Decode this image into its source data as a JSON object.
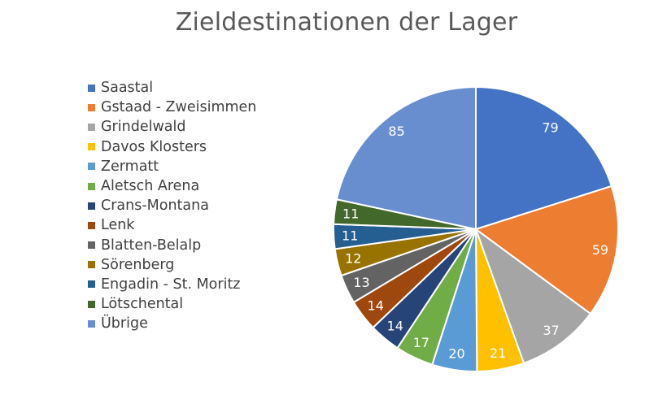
{
  "chart_data": {
    "type": "pie",
    "title": "Zieldestinationen der Lager",
    "legend_position": "left",
    "categories": [
      "Saastal",
      "Gstaad - Zweisimmen",
      "Grindelwald",
      "Davos Klosters",
      "Zermatt",
      "Aletsch Arena",
      "Crans-Montana",
      "Lenk",
      "Blatten-Belalp",
      "Sörenberg",
      "Engadin - St. Moritz",
      "Lötschental",
      "Übrige"
    ],
    "values": [
      79,
      59,
      37,
      21,
      20,
      17,
      14,
      14,
      13,
      12,
      11,
      11,
      85
    ],
    "colors": [
      "#4472C4",
      "#ED7D31",
      "#A5A5A5",
      "#FFC000",
      "#5B9BD5",
      "#70AD47",
      "#264478",
      "#9E480E",
      "#636363",
      "#997300",
      "#255E91",
      "#43682B",
      "#698ED0"
    ]
  }
}
